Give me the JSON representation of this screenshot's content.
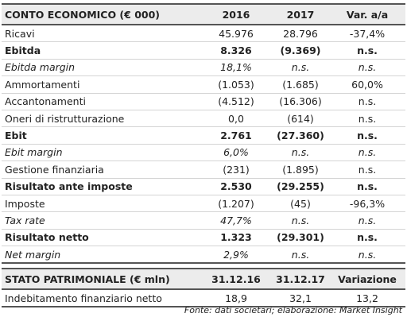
{
  "income_table": {
    "header": [
      "CONTO ECONOMICO (€ 000)",
      "2016",
      "2017",
      "Var. a/a"
    ],
    "rows": [
      [
        "Ricavi",
        "45.976",
        "28.796",
        "-37,4%"
      ],
      [
        "Ebitda",
        "8.326",
        "(9.369)",
        "n.s."
      ],
      [
        "Ebitda margin",
        "18,1%",
        "n.s.",
        "n.s."
      ],
      [
        "Ammortamenti",
        "(1.053)",
        "(1.685)",
        "60,0%"
      ],
      [
        "Accantonamenti",
        "(4.512)",
        "(16.306)",
        "n.s."
      ],
      [
        "Oneri di ristrutturazione",
        "0,0",
        "(614)",
        "n.s."
      ],
      [
        "Ebit",
        "2.761",
        "(27.360)",
        "n.s."
      ],
      [
        "Ebit margin",
        "6,0%",
        "n.s.",
        "n.s."
      ],
      [
        "Gestione finanziaria",
        "(231)",
        "(1.895)",
        "n.s."
      ],
      [
        "Risultato ante imposte",
        "2.530",
        "(29.255)",
        "n.s."
      ],
      [
        "Imposte",
        "(1.207)",
        "(45)",
        "-96,3%"
      ],
      [
        "Tax rate",
        "47,7%",
        "n.s.",
        "n.s."
      ],
      [
        "Risultato netto",
        "1.323",
        "(29.301)",
        "n.s."
      ],
      [
        "Net margin",
        "2,9%",
        "n.s.",
        "n.s."
      ]
    ]
  },
  "balance_table": {
    "header": [
      "STATO PATRIMONIALE (€ mln)",
      "31.12.16",
      "31.12.17",
      "Variazione"
    ],
    "rows": [
      [
        "Indebitamento finanziario netto",
        "18,9",
        "32,1",
        "13,2"
      ]
    ]
  },
  "footer": {
    "source": "Fonte: dati societari; elaborazione: Market Insight"
  }
}
